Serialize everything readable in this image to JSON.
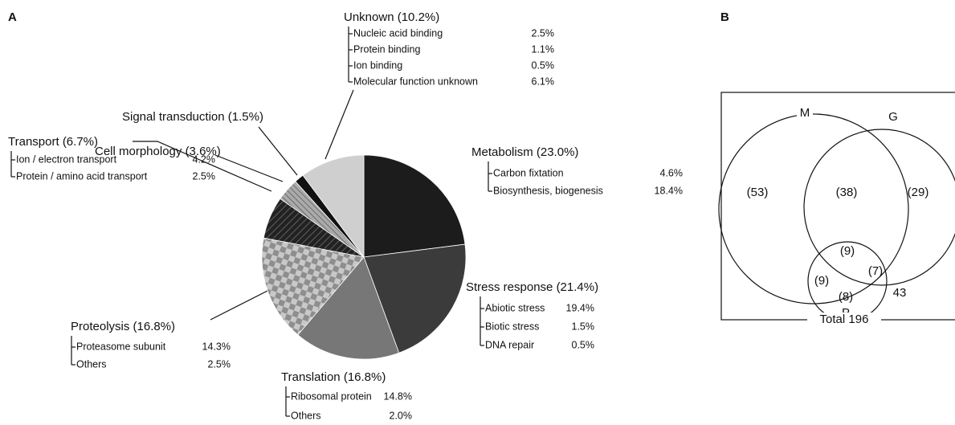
{
  "chart_data": [
    {
      "type": "pie",
      "panel": "A",
      "categories": [
        "Metabolism",
        "Stress response",
        "Translation",
        "Proteolysis",
        "Transport",
        "Cell morphology",
        "Signal transduction",
        "Unknown"
      ],
      "values": [
        23.0,
        21.4,
        16.8,
        16.8,
        6.7,
        3.6,
        1.5,
        10.2
      ],
      "value_labels": [
        "(23.0%)",
        "(21.4%)",
        "(16.8%)",
        "(16.8%)",
        "(6.7%)",
        "(3.6%)",
        "(1.5%)",
        "(10.2%)"
      ],
      "colors": [
        "#1c1c1c",
        "#3b3b3b",
        "#777777",
        "#bdbdbd",
        "#262626",
        "#9a9a9a",
        "#111111",
        "#cfcfcf"
      ],
      "breakdown": [
        [
          {
            "name": "Carbon fixtation",
            "value": 4.6,
            "value_label": "4.6%"
          },
          {
            "name": "Biosynthesis, biogenesis",
            "value": 18.4,
            "value_label": "18.4%"
          }
        ],
        [
          {
            "name": "Abiotic stress",
            "value": 19.4,
            "value_label": "19.4%"
          },
          {
            "name": "Biotic stress",
            "value": 1.5,
            "value_label": "1.5%"
          },
          {
            "name": "DNA repair",
            "value": 0.5,
            "value_label": "0.5%"
          }
        ],
        [
          {
            "name": "Ribosomal protein",
            "value": 14.8,
            "value_label": "14.8%"
          },
          {
            "name": "Others",
            "value": 2.0,
            "value_label": "2.0%"
          }
        ],
        [
          {
            "name": "Proteasome subunit",
            "value": 14.3,
            "value_label": "14.3%"
          },
          {
            "name": "Others",
            "value": 2.5,
            "value_label": "2.5%"
          }
        ],
        [
          {
            "name": "Ion / electron transport",
            "value": 4.2,
            "value_label": "4.2%"
          },
          {
            "name": "Protein / amino acid transport",
            "value": 2.5,
            "value_label": "2.5%"
          }
        ],
        [],
        [],
        [
          {
            "name": "Nucleic acid binding",
            "value": 2.5,
            "value_label": "2.5%"
          },
          {
            "name": "Protein binding",
            "value": 1.1,
            "value_label": "1.1%"
          },
          {
            "name": "Ion binding",
            "value": 0.5,
            "value_label": "0.5%"
          },
          {
            "name": "Molecular function unknown",
            "value": 6.1,
            "value_label": "6.1%"
          }
        ]
      ]
    },
    {
      "type": "venn",
      "panel": "B",
      "sets": [
        "M",
        "G",
        "P"
      ],
      "regions": [
        {
          "sets": "M",
          "value": 53,
          "label": "(53)"
        },
        {
          "sets": "MG",
          "value": 38,
          "label": "(38)"
        },
        {
          "sets": "G",
          "value": 29,
          "label": "(29)"
        },
        {
          "sets": "MGP",
          "value": 9,
          "label": "(9)"
        },
        {
          "sets": "MP",
          "value": 9,
          "label": "(9)"
        },
        {
          "sets": "GP",
          "value": 7,
          "label": "(7)"
        },
        {
          "sets": "P",
          "value": 8,
          "label": "(8)"
        }
      ],
      "outside": 43,
      "total_label": "Total 196"
    }
  ]
}
